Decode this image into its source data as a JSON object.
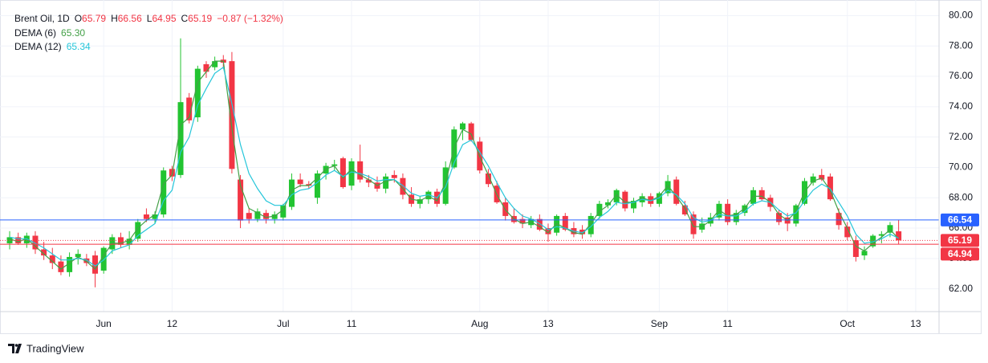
{
  "chart_data": {
    "type": "candlestick",
    "title": "Brent Oil, 1D",
    "ohlc_labels": [
      "O",
      "H",
      "L",
      "C"
    ],
    "change_label": "−0.87 (−1.32%)",
    "categories": [
      null,
      null,
      null,
      null,
      null,
      null,
      null,
      null,
      null,
      null,
      null,
      "Jun",
      null,
      null,
      null,
      null,
      null,
      null,
      null,
      "12",
      null,
      null,
      null,
      null,
      null,
      null,
      null,
      null,
      null,
      null,
      null,
      null,
      "Jul",
      null,
      null,
      null,
      null,
      null,
      null,
      null,
      "11",
      null,
      null,
      null,
      null,
      null,
      null,
      null,
      null,
      null,
      null,
      null,
      null,
      null,
      null,
      "Aug",
      null,
      null,
      null,
      null,
      null,
      null,
      null,
      "13",
      null,
      null,
      null,
      null,
      null,
      null,
      null,
      null,
      null,
      null,
      null,
      null,
      "Sep",
      null,
      null,
      null,
      null,
      null,
      null,
      null,
      "11",
      null,
      null,
      null,
      null,
      null,
      null,
      null,
      null,
      null,
      null,
      null,
      null,
      null,
      "Oct",
      null,
      null,
      null,
      null,
      null,
      null,
      null,
      "13"
    ],
    "open": [
      65.0,
      65.4,
      65.0,
      65.5,
      64.6,
      64.2,
      63.8,
      63.1,
      64.1,
      64.0,
      64.2,
      63.2,
      64.6,
      65.4,
      64.9,
      65.3,
      66.9,
      66.6,
      66.9,
      69.9,
      69.5,
      74.6,
      73.3,
      76.8,
      76.6,
      77.1,
      77.0,
      69.2,
      67.0,
      66.6,
      67.0,
      66.6,
      66.7,
      67.4,
      69.2,
      68.9,
      68.0,
      69.6,
      70.1,
      70.6,
      68.8,
      70.4,
      69.2,
      69.0,
      68.6,
      69.5,
      69.3,
      68.2,
      67.6,
      67.9,
      68.4,
      67.6,
      70.0,
      72.5,
      72.9,
      71.7,
      69.6,
      68.8,
      67.7,
      66.8,
      66.6,
      66.2,
      66.6,
      66.0,
      65.7,
      66.8,
      66.0,
      65.9,
      65.6,
      66.8,
      67.5,
      67.7,
      68.4,
      67.3,
      67.7,
      68.1,
      67.6,
      68.3,
      69.2,
      67.5,
      66.9,
      65.9,
      66.3,
      66.7,
      67.6,
      66.4,
      67.0,
      67.6,
      68.5,
      68.0,
      67.0,
      66.7,
      66.3,
      67.6,
      69.0,
      69.5,
      69.4,
      67.0,
      66.1,
      65.2,
      64.2,
      64.8,
      65.5,
      65.7,
      65.79,
      null,
      null
    ],
    "high": [
      65.8,
      65.7,
      65.7,
      65.8,
      65.1,
      64.7,
      64.2,
      64.4,
      64.6,
      64.3,
      64.5,
      64.8,
      65.6,
      65.7,
      65.8,
      66.6,
      67.3,
      67.1,
      70.0,
      70.1,
      78.5,
      74.9,
      76.7,
      77.0,
      77.3,
      77.4,
      77.6,
      69.5,
      67.3,
      67.3,
      67.2,
      67.1,
      67.6,
      69.6,
      69.6,
      69.1,
      69.8,
      70.3,
      70.5,
      70.7,
      70.6,
      71.5,
      69.5,
      69.4,
      69.6,
      69.8,
      69.6,
      68.7,
      68.1,
      68.5,
      68.6,
      70.4,
      72.7,
      73.0,
      73.0,
      72.0,
      69.9,
      69.1,
      68.0,
      67.3,
      66.9,
      66.8,
      66.9,
      66.3,
      66.9,
      67.0,
      66.4,
      66.2,
      67.0,
      67.8,
      67.9,
      68.6,
      68.5,
      68.0,
      68.3,
      68.3,
      68.4,
      69.5,
      69.4,
      67.8,
      67.1,
      66.7,
      67.0,
      67.8,
      67.9,
      67.2,
      67.6,
      68.7,
      68.7,
      68.2,
      67.2,
      67.0,
      67.6,
      69.3,
      69.6,
      69.9,
      69.6,
      67.3,
      66.4,
      65.5,
      64.8,
      65.6,
      65.8,
      66.4,
      66.56,
      null,
      null
    ],
    "low": [
      64.6,
      64.9,
      64.7,
      64.3,
      63.9,
      63.3,
      62.9,
      62.8,
      63.6,
      63.5,
      62.1,
      63.0,
      64.3,
      64.7,
      64.6,
      65.1,
      66.4,
      66.3,
      66.7,
      69.1,
      69.3,
      72.9,
      73.0,
      75.9,
      76.4,
      76.5,
      69.6,
      66.0,
      66.3,
      66.4,
      66.3,
      66.3,
      66.5,
      67.2,
      68.7,
      68.6,
      67.6,
      69.2,
      69.8,
      68.6,
      68.5,
      69.0,
      68.7,
      68.4,
      68.3,
      69.0,
      67.9,
      67.4,
      67.3,
      67.6,
      67.4,
      67.5,
      69.9,
      71.8,
      71.7,
      69.6,
      68.7,
      67.6,
      66.5,
      66.3,
      66.0,
      66.0,
      65.8,
      65.1,
      65.5,
      65.8,
      65.4,
      65.3,
      65.4,
      66.6,
      67.3,
      67.5,
      67.1,
      67.0,
      67.4,
      67.4,
      67.4,
      68.1,
      67.5,
      66.8,
      65.3,
      65.7,
      66.1,
      66.5,
      66.2,
      66.2,
      66.8,
      67.5,
      67.8,
      67.1,
      66.2,
      65.8,
      66.1,
      67.5,
      68.8,
      69.1,
      67.8,
      65.9,
      65.2,
      63.8,
      63.9,
      64.7,
      65.0,
      65.4,
      64.95,
      null,
      null
    ],
    "close": [
      65.4,
      65.0,
      65.5,
      64.6,
      64.2,
      63.7,
      63.1,
      64.1,
      64.3,
      63.7,
      63.0,
      64.7,
      65.4,
      64.9,
      65.3,
      66.4,
      66.6,
      66.9,
      69.8,
      69.4,
      74.3,
      73.1,
      76.5,
      76.3,
      77.0,
      76.9,
      69.9,
      66.5,
      66.6,
      67.1,
      66.6,
      66.9,
      67.5,
      69.2,
      68.9,
      68.8,
      69.6,
      70.1,
      70.2,
      68.7,
      70.4,
      69.2,
      69.0,
      68.6,
      69.4,
      69.3,
      68.2,
      67.6,
      67.9,
      68.4,
      67.6,
      70.0,
      72.5,
      72.9,
      71.8,
      69.8,
      68.9,
      67.7,
      66.8,
      66.4,
      66.3,
      66.6,
      65.9,
      65.6,
      66.8,
      65.9,
      65.6,
      65.6,
      66.8,
      67.6,
      67.7,
      68.5,
      67.3,
      67.8,
      68.1,
      67.6,
      68.3,
      69.1,
      67.6,
      66.9,
      65.6,
      66.3,
      66.7,
      67.6,
      66.4,
      67.0,
      67.5,
      68.5,
      67.9,
      67.4,
      66.4,
      66.3,
      67.5,
      69.1,
      69.4,
      69.2,
      67.9,
      66.2,
      65.4,
      64.1,
      64.5,
      65.5,
      65.6,
      66.2,
      65.19,
      null,
      null
    ],
    "up_color": "#22c431",
    "down_color": "#f23645",
    "series": [
      {
        "name": "DEMA (6)",
        "color": "#43a047",
        "value_label": "65.30",
        "values": [
          65.3,
          65.1,
          65.3,
          64.8,
          64.3,
          63.8,
          63.3,
          63.7,
          64.1,
          63.8,
          63.3,
          64.2,
          65.0,
          65.0,
          65.2,
          66.0,
          66.5,
          66.9,
          68.9,
          69.5,
          72.8,
          73.3,
          75.6,
          76.3,
          77.0,
          77.0,
          72.6,
          68.8,
          67.3,
          67.0,
          66.7,
          66.8,
          67.2,
          68.5,
          68.8,
          68.8,
          69.3,
          69.9,
          70.1,
          69.3,
          69.9,
          69.5,
          69.2,
          68.8,
          69.1,
          69.2,
          68.6,
          67.9,
          67.8,
          68.1,
          67.8,
          69.0,
          71.3,
          72.5,
          72.2,
          70.7,
          69.5,
          68.2,
          67.2,
          66.6,
          66.3,
          66.4,
          66.1,
          65.7,
          66.3,
          66.0,
          65.7,
          65.6,
          66.3,
          67.1,
          67.5,
          68.2,
          67.7,
          67.7,
          68.0,
          67.8,
          68.1,
          68.8,
          68.1,
          67.3,
          66.1,
          66.1,
          66.5,
          67.2,
          66.8,
          66.9,
          67.3,
          68.1,
          68.1,
          67.7,
          66.9,
          66.5,
          67.1,
          68.4,
          69.1,
          69.3,
          68.5,
          67.1,
          66.0,
          64.8,
          64.5,
          65.0,
          65.4,
          65.9,
          65.3,
          null,
          null
        ]
      },
      {
        "name": "DEMA (12)",
        "color": "#26c6da",
        "value_label": "65.34",
        "values": [
          65.4,
          65.3,
          65.3,
          65.0,
          64.7,
          64.3,
          63.9,
          63.9,
          64.0,
          63.9,
          63.5,
          63.9,
          64.5,
          64.7,
          64.9,
          65.5,
          65.9,
          66.3,
          67.8,
          68.5,
          71.0,
          72.0,
          74.1,
          75.2,
          76.2,
          76.6,
          74.2,
          71.5,
          69.6,
          68.6,
          67.8,
          67.5,
          67.5,
          68.2,
          68.5,
          68.6,
          69.0,
          69.5,
          69.8,
          69.4,
          69.7,
          69.6,
          69.4,
          69.1,
          69.2,
          69.2,
          68.8,
          68.3,
          68.1,
          68.2,
          68.0,
          68.7,
          70.3,
          71.5,
          71.8,
          71.0,
          70.1,
          69.0,
          68.0,
          67.3,
          66.8,
          66.6,
          66.3,
          65.9,
          66.1,
          66.0,
          65.8,
          65.7,
          66.1,
          66.7,
          67.1,
          67.7,
          67.6,
          67.7,
          67.9,
          67.8,
          68.0,
          68.5,
          68.2,
          67.6,
          66.7,
          66.4,
          66.5,
          66.9,
          66.8,
          66.8,
          67.1,
          67.6,
          67.8,
          67.7,
          67.2,
          66.8,
          67.0,
          67.8,
          68.5,
          68.9,
          68.6,
          67.7,
          66.8,
          65.6,
          65.0,
          65.1,
          65.3,
          65.6,
          65.34,
          null,
          null
        ]
      }
    ],
    "price_lines": [
      {
        "value": 66.54,
        "color": "#2962ff",
        "style": "solid"
      },
      {
        "value": 65.19,
        "color": "#f23645",
        "style": "dotted"
      },
      {
        "value": 64.94,
        "color": "#f23645",
        "style": "solid"
      }
    ],
    "ylim": [
      60.5,
      80.5
    ],
    "yticks": [
      {
        "value": 62,
        "label": "62.00"
      },
      {
        "value": 64,
        "label": "64.00"
      },
      {
        "value": 66,
        "label": "66.00"
      },
      {
        "value": 68,
        "label": "68.00"
      },
      {
        "value": 70,
        "label": "70.00"
      },
      {
        "value": 72,
        "label": "72.00"
      },
      {
        "value": 74,
        "label": "74.00"
      },
      {
        "value": 76,
        "label": "76.00"
      },
      {
        "value": 78,
        "label": "78.00"
      },
      {
        "value": 80,
        "label": "80.00"
      }
    ],
    "grid": true,
    "branding": "TradingView"
  }
}
